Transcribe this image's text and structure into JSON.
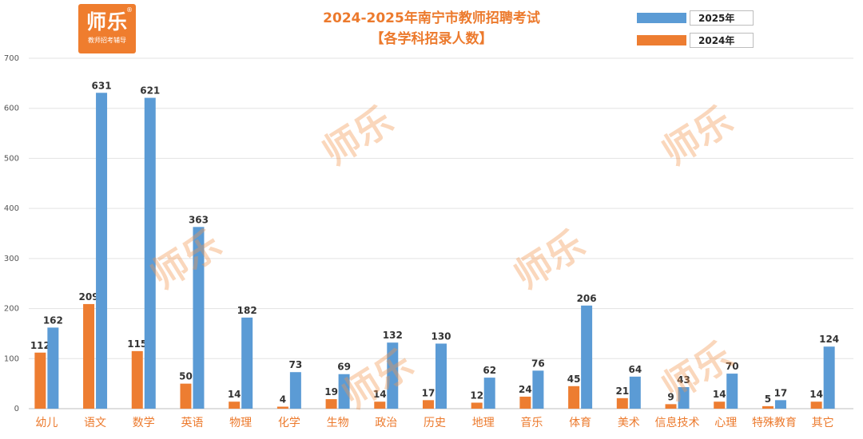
{
  "logo": {
    "big": "师乐",
    "small": "教师招考辅导",
    "mark": "®"
  },
  "watermark_text": "师乐",
  "chart_data": {
    "type": "bar",
    "title": "2024-2025年南宁市教师招聘考试",
    "subtitle": "【各学科招录人数】",
    "xlabel": "",
    "ylabel": "",
    "categories": [
      "幼儿",
      "语文",
      "数学",
      "英语",
      "物理",
      "化学",
      "生物",
      "政治",
      "历史",
      "地理",
      "音乐",
      "体育",
      "美术",
      "信息技术",
      "心理",
      "特殊教育",
      "其它"
    ],
    "series": [
      {
        "name": "2024年",
        "color": "#ed7d31",
        "values": [
          112,
          209,
          115,
          50,
          14,
          4,
          19,
          14,
          17,
          12,
          24,
          45,
          21,
          9,
          14,
          5,
          14
        ]
      },
      {
        "name": "2025年",
        "color": "#5b9bd5",
        "values": [
          162,
          631,
          621,
          363,
          182,
          73,
          69,
          132,
          130,
          62,
          76,
          206,
          64,
          43,
          70,
          17,
          124
        ]
      }
    ],
    "ylim": [
      0,
      700
    ],
    "yticks": [
      0,
      100,
      200,
      300,
      400,
      500,
      600,
      700
    ],
    "grid": true,
    "legend_position": "top-right",
    "legend_order": [
      "2025年",
      "2024年"
    ],
    "category_label_color": "#ec7a2d",
    "tick_label_color": "#555555",
    "value_label_color": "#333333"
  }
}
